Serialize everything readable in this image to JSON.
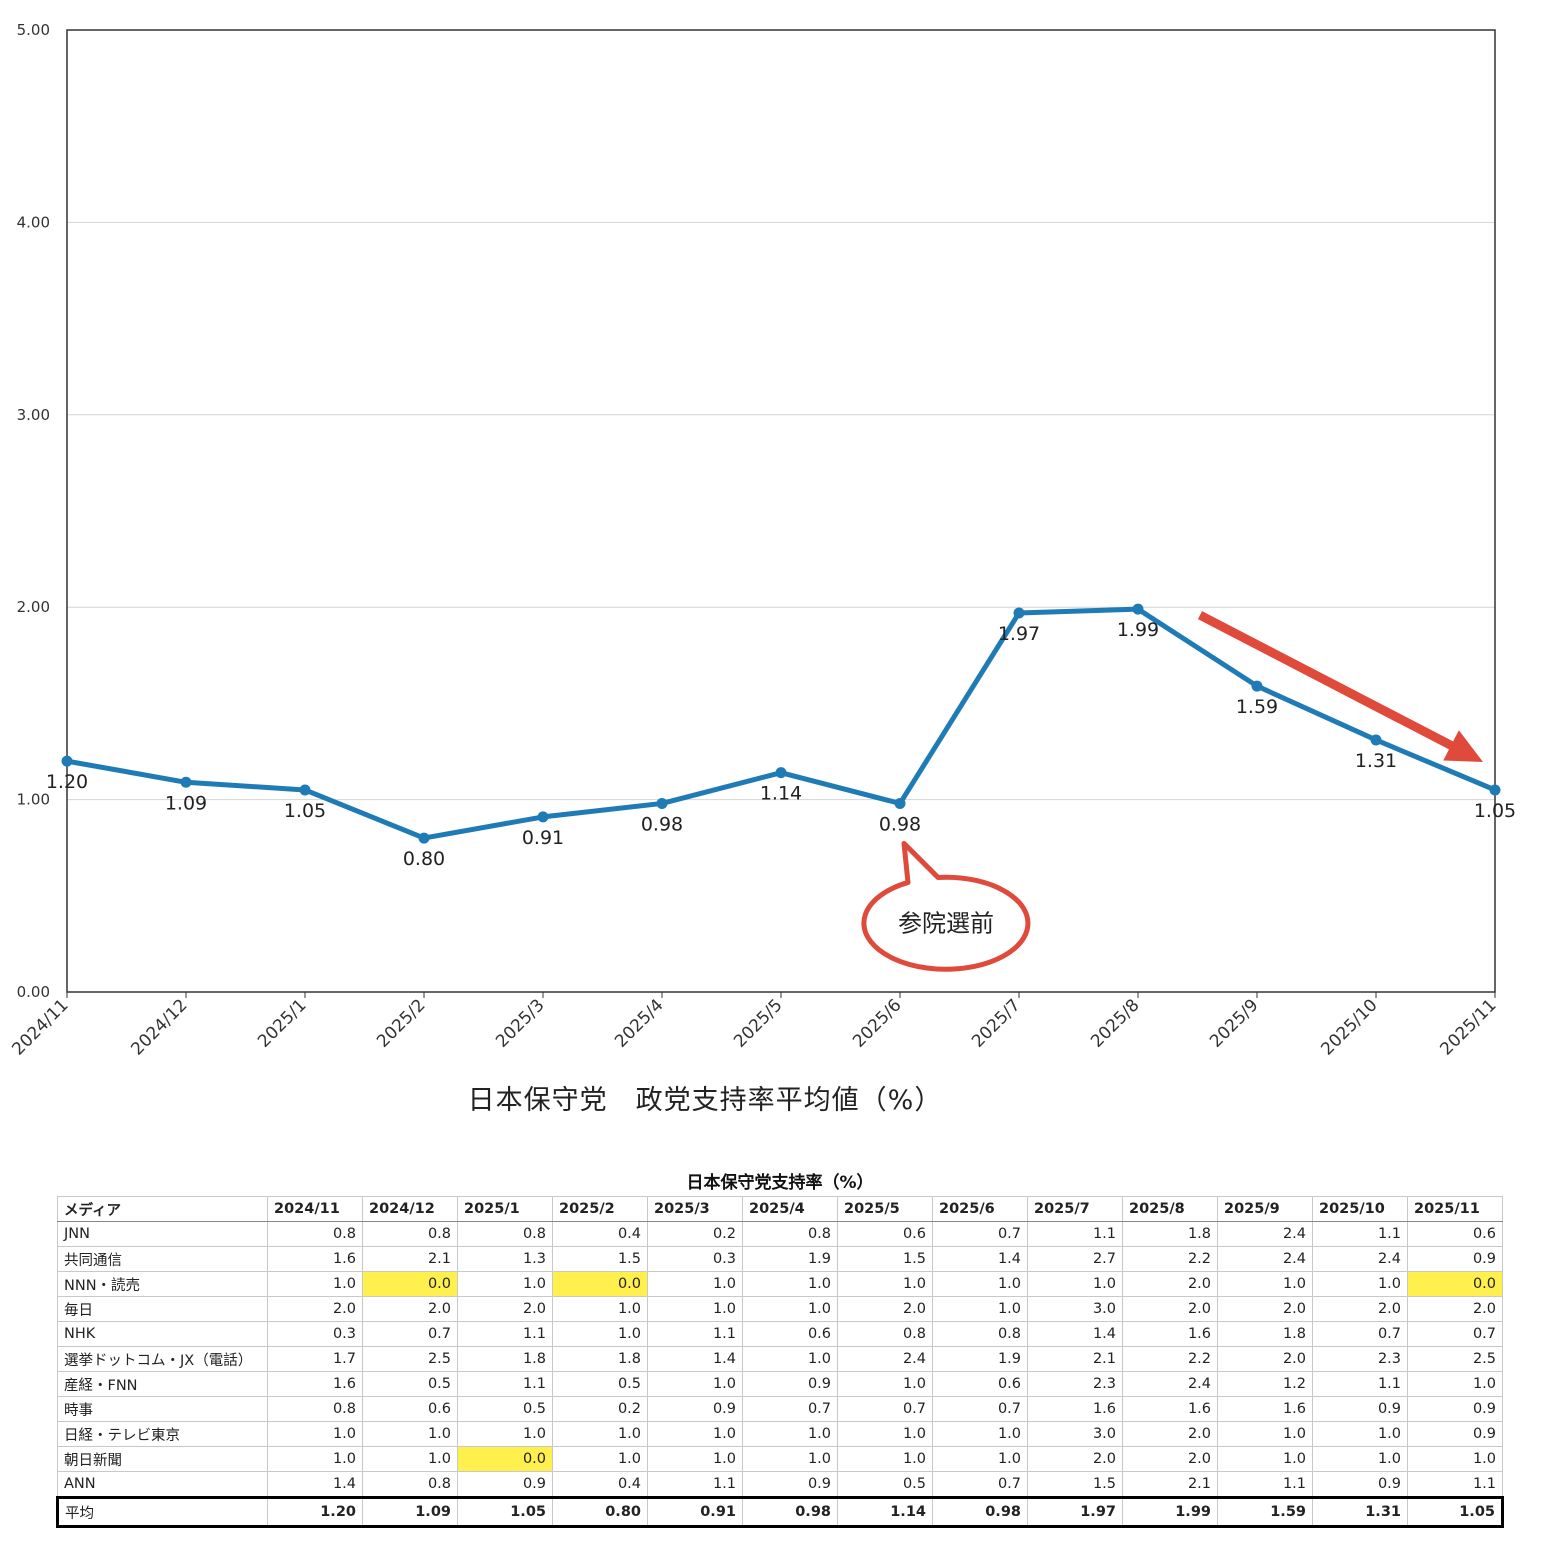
{
  "chart_data": {
    "type": "line",
    "title": "日本保守党　政党支持率平均値（%）",
    "categories": [
      "2024/11",
      "2024/12",
      "2025/1",
      "2025/2",
      "2025/3",
      "2025/4",
      "2025/5",
      "2025/6",
      "2025/7",
      "2025/8",
      "2025/9",
      "2025/10",
      "2025/11"
    ],
    "values": [
      1.2,
      1.09,
      1.05,
      0.8,
      0.91,
      0.98,
      1.14,
      0.98,
      1.97,
      1.99,
      1.59,
      1.31,
      1.05
    ],
    "data_labels": [
      "1.20",
      "1.09",
      "1.05",
      "0.80",
      "0.91",
      "0.98",
      "1.14",
      "0.98",
      "1.97",
      "1.99",
      "1.59",
      "1.31",
      "1.05"
    ],
    "ylim": [
      0,
      5
    ],
    "yticks": [
      "0.00",
      "1.00",
      "2.00",
      "3.00",
      "4.00",
      "5.00"
    ],
    "grid": true,
    "line_color": "#1f7bb6",
    "annotation_color": "#e04a3a",
    "annotations": {
      "callout_text": "参院選前",
      "callout_category": "2025/6",
      "arrow_from_category": "2025/8",
      "arrow_to_category": "2025/11",
      "arrow_direction": "down"
    }
  },
  "table": {
    "title": "日本保守党支持率（%）",
    "header_label": "メディア",
    "columns": [
      "2024/11",
      "2024/12",
      "2025/1",
      "2025/2",
      "2025/3",
      "2025/4",
      "2025/5",
      "2025/6",
      "2025/7",
      "2025/8",
      "2025/9",
      "2025/10",
      "2025/11"
    ],
    "highlight_color": "#fff04d",
    "rows": [
      {
        "name": "JNN",
        "values": [
          "0.8",
          "0.8",
          "0.8",
          "0.4",
          "0.2",
          "0.8",
          "0.6",
          "0.7",
          "1.1",
          "1.8",
          "2.4",
          "1.1",
          "0.6"
        ]
      },
      {
        "name": "共同通信",
        "values": [
          "1.6",
          "2.1",
          "1.3",
          "1.5",
          "0.3",
          "1.9",
          "1.5",
          "1.4",
          "2.7",
          "2.2",
          "2.4",
          "2.4",
          "0.9"
        ]
      },
      {
        "name": "NNN・読売",
        "values": [
          "1.0",
          "0.0",
          "1.0",
          "0.0",
          "1.0",
          "1.0",
          "1.0",
          "1.0",
          "1.0",
          "2.0",
          "1.0",
          "1.0",
          "0.0"
        ],
        "highlight": [
          1,
          3,
          12
        ]
      },
      {
        "name": "毎日",
        "values": [
          "2.0",
          "2.0",
          "2.0",
          "1.0",
          "1.0",
          "1.0",
          "2.0",
          "1.0",
          "3.0",
          "2.0",
          "2.0",
          "2.0",
          "2.0"
        ]
      },
      {
        "name": "NHK",
        "values": [
          "0.3",
          "0.7",
          "1.1",
          "1.0",
          "1.1",
          "0.6",
          "0.8",
          "0.8",
          "1.4",
          "1.6",
          "1.8",
          "0.7",
          "0.7"
        ]
      },
      {
        "name": "選挙ドットコム・JX（電話）",
        "values": [
          "1.7",
          "2.5",
          "1.8",
          "1.8",
          "1.4",
          "1.0",
          "2.4",
          "1.9",
          "2.1",
          "2.2",
          "2.0",
          "2.3",
          "2.5"
        ]
      },
      {
        "name": "産経・FNN",
        "values": [
          "1.6",
          "0.5",
          "1.1",
          "0.5",
          "1.0",
          "0.9",
          "1.0",
          "0.6",
          "2.3",
          "2.4",
          "1.2",
          "1.1",
          "1.0"
        ]
      },
      {
        "name": "時事",
        "values": [
          "0.8",
          "0.6",
          "0.5",
          "0.2",
          "0.9",
          "0.7",
          "0.7",
          "0.7",
          "1.6",
          "1.6",
          "1.6",
          "0.9",
          "0.9"
        ]
      },
      {
        "name": "日経・テレビ東京",
        "values": [
          "1.0",
          "1.0",
          "1.0",
          "1.0",
          "1.0",
          "1.0",
          "1.0",
          "1.0",
          "3.0",
          "2.0",
          "1.0",
          "1.0",
          "0.9"
        ]
      },
      {
        "name": "朝日新聞",
        "values": [
          "1.0",
          "1.0",
          "0.0",
          "1.0",
          "1.0",
          "1.0",
          "1.0",
          "1.0",
          "2.0",
          "2.0",
          "1.0",
          "1.0",
          "1.0"
        ],
        "highlight": [
          2
        ]
      },
      {
        "name": "ANN",
        "values": [
          "1.4",
          "0.8",
          "0.9",
          "0.4",
          "1.1",
          "0.9",
          "0.5",
          "0.7",
          "1.5",
          "2.1",
          "1.1",
          "0.9",
          "1.1"
        ]
      }
    ],
    "average": {
      "name": "平均",
      "values": [
        "1.20",
        "1.09",
        "1.05",
        "0.80",
        "0.91",
        "0.98",
        "1.14",
        "0.98",
        "1.97",
        "1.99",
        "1.59",
        "1.31",
        "1.05"
      ]
    }
  }
}
